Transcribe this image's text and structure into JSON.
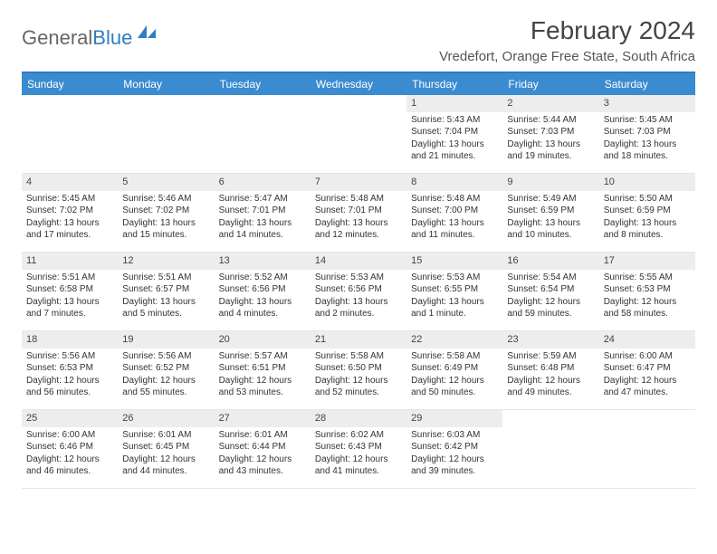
{
  "brand": {
    "part1": "General",
    "part2": "Blue"
  },
  "title": "February 2024",
  "location": "Vredefort, Orange Free State, South Africa",
  "day_headers": [
    "Sunday",
    "Monday",
    "Tuesday",
    "Wednesday",
    "Thursday",
    "Friday",
    "Saturday"
  ],
  "colors": {
    "header_bg": "#3a8bd0",
    "header_text": "#ffffff",
    "border_top": "#2d7dc4",
    "daynum_bg": "#ededed",
    "body_text": "#333333",
    "brand_gray": "#666666",
    "brand_blue": "#2d7dc4"
  },
  "weeks": [
    [
      {
        "n": "",
        "empty": true
      },
      {
        "n": "",
        "empty": true
      },
      {
        "n": "",
        "empty": true
      },
      {
        "n": "",
        "empty": true
      },
      {
        "n": "1",
        "sr": "Sunrise: 5:43 AM",
        "ss": "Sunset: 7:04 PM",
        "dl1": "Daylight: 13 hours",
        "dl2": "and 21 minutes."
      },
      {
        "n": "2",
        "sr": "Sunrise: 5:44 AM",
        "ss": "Sunset: 7:03 PM",
        "dl1": "Daylight: 13 hours",
        "dl2": "and 19 minutes."
      },
      {
        "n": "3",
        "sr": "Sunrise: 5:45 AM",
        "ss": "Sunset: 7:03 PM",
        "dl1": "Daylight: 13 hours",
        "dl2": "and 18 minutes."
      }
    ],
    [
      {
        "n": "4",
        "sr": "Sunrise: 5:45 AM",
        "ss": "Sunset: 7:02 PM",
        "dl1": "Daylight: 13 hours",
        "dl2": "and 17 minutes."
      },
      {
        "n": "5",
        "sr": "Sunrise: 5:46 AM",
        "ss": "Sunset: 7:02 PM",
        "dl1": "Daylight: 13 hours",
        "dl2": "and 15 minutes."
      },
      {
        "n": "6",
        "sr": "Sunrise: 5:47 AM",
        "ss": "Sunset: 7:01 PM",
        "dl1": "Daylight: 13 hours",
        "dl2": "and 14 minutes."
      },
      {
        "n": "7",
        "sr": "Sunrise: 5:48 AM",
        "ss": "Sunset: 7:01 PM",
        "dl1": "Daylight: 13 hours",
        "dl2": "and 12 minutes."
      },
      {
        "n": "8",
        "sr": "Sunrise: 5:48 AM",
        "ss": "Sunset: 7:00 PM",
        "dl1": "Daylight: 13 hours",
        "dl2": "and 11 minutes."
      },
      {
        "n": "9",
        "sr": "Sunrise: 5:49 AM",
        "ss": "Sunset: 6:59 PM",
        "dl1": "Daylight: 13 hours",
        "dl2": "and 10 minutes."
      },
      {
        "n": "10",
        "sr": "Sunrise: 5:50 AM",
        "ss": "Sunset: 6:59 PM",
        "dl1": "Daylight: 13 hours",
        "dl2": "and 8 minutes."
      }
    ],
    [
      {
        "n": "11",
        "sr": "Sunrise: 5:51 AM",
        "ss": "Sunset: 6:58 PM",
        "dl1": "Daylight: 13 hours",
        "dl2": "and 7 minutes."
      },
      {
        "n": "12",
        "sr": "Sunrise: 5:51 AM",
        "ss": "Sunset: 6:57 PM",
        "dl1": "Daylight: 13 hours",
        "dl2": "and 5 minutes."
      },
      {
        "n": "13",
        "sr": "Sunrise: 5:52 AM",
        "ss": "Sunset: 6:56 PM",
        "dl1": "Daylight: 13 hours",
        "dl2": "and 4 minutes."
      },
      {
        "n": "14",
        "sr": "Sunrise: 5:53 AM",
        "ss": "Sunset: 6:56 PM",
        "dl1": "Daylight: 13 hours",
        "dl2": "and 2 minutes."
      },
      {
        "n": "15",
        "sr": "Sunrise: 5:53 AM",
        "ss": "Sunset: 6:55 PM",
        "dl1": "Daylight: 13 hours",
        "dl2": "and 1 minute."
      },
      {
        "n": "16",
        "sr": "Sunrise: 5:54 AM",
        "ss": "Sunset: 6:54 PM",
        "dl1": "Daylight: 12 hours",
        "dl2": "and 59 minutes."
      },
      {
        "n": "17",
        "sr": "Sunrise: 5:55 AM",
        "ss": "Sunset: 6:53 PM",
        "dl1": "Daylight: 12 hours",
        "dl2": "and 58 minutes."
      }
    ],
    [
      {
        "n": "18",
        "sr": "Sunrise: 5:56 AM",
        "ss": "Sunset: 6:53 PM",
        "dl1": "Daylight: 12 hours",
        "dl2": "and 56 minutes."
      },
      {
        "n": "19",
        "sr": "Sunrise: 5:56 AM",
        "ss": "Sunset: 6:52 PM",
        "dl1": "Daylight: 12 hours",
        "dl2": "and 55 minutes."
      },
      {
        "n": "20",
        "sr": "Sunrise: 5:57 AM",
        "ss": "Sunset: 6:51 PM",
        "dl1": "Daylight: 12 hours",
        "dl2": "and 53 minutes."
      },
      {
        "n": "21",
        "sr": "Sunrise: 5:58 AM",
        "ss": "Sunset: 6:50 PM",
        "dl1": "Daylight: 12 hours",
        "dl2": "and 52 minutes."
      },
      {
        "n": "22",
        "sr": "Sunrise: 5:58 AM",
        "ss": "Sunset: 6:49 PM",
        "dl1": "Daylight: 12 hours",
        "dl2": "and 50 minutes."
      },
      {
        "n": "23",
        "sr": "Sunrise: 5:59 AM",
        "ss": "Sunset: 6:48 PM",
        "dl1": "Daylight: 12 hours",
        "dl2": "and 49 minutes."
      },
      {
        "n": "24",
        "sr": "Sunrise: 6:00 AM",
        "ss": "Sunset: 6:47 PM",
        "dl1": "Daylight: 12 hours",
        "dl2": "and 47 minutes."
      }
    ],
    [
      {
        "n": "25",
        "sr": "Sunrise: 6:00 AM",
        "ss": "Sunset: 6:46 PM",
        "dl1": "Daylight: 12 hours",
        "dl2": "and 46 minutes."
      },
      {
        "n": "26",
        "sr": "Sunrise: 6:01 AM",
        "ss": "Sunset: 6:45 PM",
        "dl1": "Daylight: 12 hours",
        "dl2": "and 44 minutes."
      },
      {
        "n": "27",
        "sr": "Sunrise: 6:01 AM",
        "ss": "Sunset: 6:44 PM",
        "dl1": "Daylight: 12 hours",
        "dl2": "and 43 minutes."
      },
      {
        "n": "28",
        "sr": "Sunrise: 6:02 AM",
        "ss": "Sunset: 6:43 PM",
        "dl1": "Daylight: 12 hours",
        "dl2": "and 41 minutes."
      },
      {
        "n": "29",
        "sr": "Sunrise: 6:03 AM",
        "ss": "Sunset: 6:42 PM",
        "dl1": "Daylight: 12 hours",
        "dl2": "and 39 minutes."
      },
      {
        "n": "",
        "empty": true
      },
      {
        "n": "",
        "empty": true
      }
    ]
  ]
}
